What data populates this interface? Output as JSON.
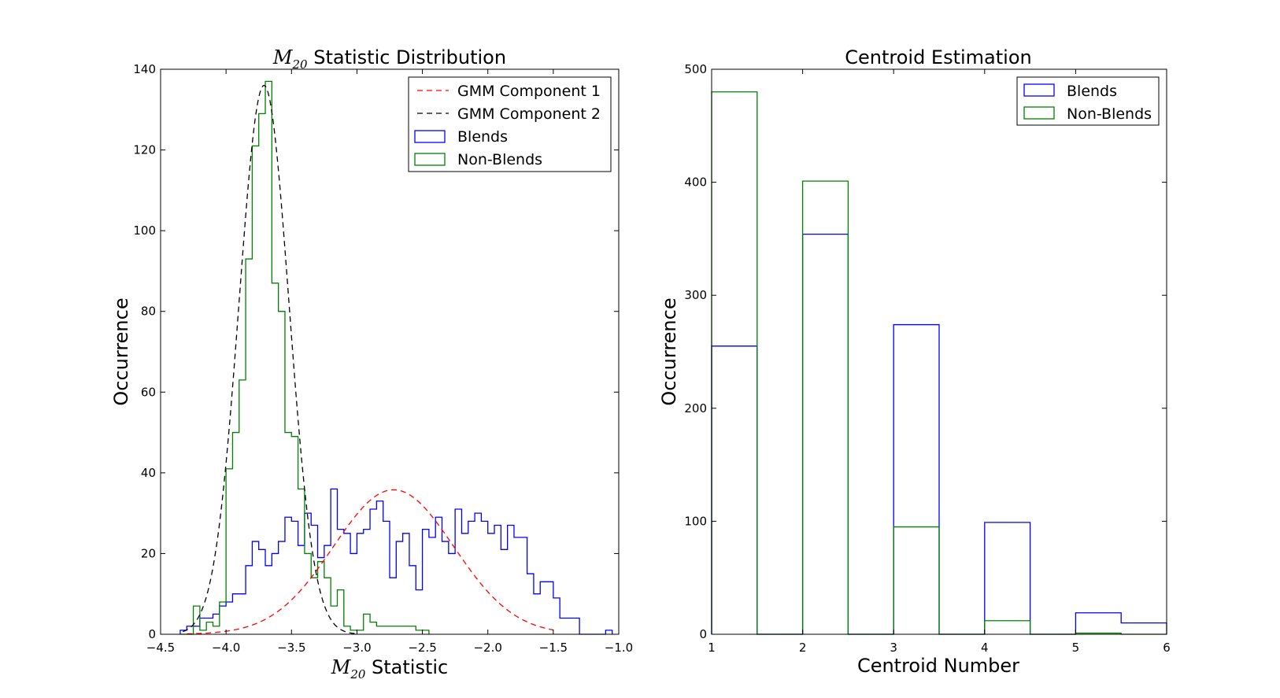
{
  "chart_data": [
    {
      "type": "histogram",
      "title": {
        "math_symbol": "M",
        "math_sub": "20",
        "text": " Statistic Distribution"
      },
      "xlabel": {
        "math_symbol": "M",
        "math_sub": "20",
        "text": " Statistic"
      },
      "ylabel": "Occurrence",
      "xlim": [
        -4.5,
        -1.0
      ],
      "ylim": [
        0,
        140
      ],
      "xticks": [
        -4.5,
        -4.0,
        -3.5,
        -3.0,
        -2.5,
        -2.0,
        -1.5,
        -1.0
      ],
      "xtick_labels": [
        "−4.5",
        "−4.0",
        "−3.5",
        "−3.0",
        "−2.5",
        "−2.0",
        "−1.5",
        "−1.0"
      ],
      "yticks": [
        0,
        20,
        40,
        60,
        80,
        100,
        120,
        140
      ],
      "ytick_labels": [
        "0",
        "20",
        "40",
        "60",
        "80",
        "100",
        "120",
        "140"
      ],
      "grid": false,
      "legend_position": "top-right",
      "bin_start": -4.35,
      "bin_width": 0.05,
      "series": [
        {
          "name": "Blends",
          "kind": "step",
          "color": "#0000ff",
          "values": [
            1,
            2,
            2,
            4,
            4,
            5,
            7,
            8,
            10,
            10,
            17,
            23,
            21,
            17,
            20,
            23,
            29,
            28,
            22,
            30,
            27,
            19,
            22,
            36,
            26,
            25,
            20,
            25,
            26,
            31,
            33,
            28,
            14,
            23,
            25,
            17,
            11,
            26,
            24,
            29,
            23,
            20,
            31,
            25,
            28,
            30,
            28,
            25,
            27,
            21,
            27,
            24,
            24,
            15,
            10,
            13,
            13,
            9,
            4,
            4,
            4,
            0,
            0,
            0,
            0,
            1
          ]
        },
        {
          "name": "Non-Blends",
          "kind": "step",
          "color": "#008000",
          "values": [
            0,
            0,
            7,
            1,
            3,
            2,
            8,
            41,
            50,
            63,
            93,
            121,
            129,
            137,
            87,
            80,
            50,
            49,
            36,
            20,
            14,
            18,
            14,
            7,
            11,
            2,
            1,
            1,
            5,
            3,
            2,
            2,
            2,
            2,
            2,
            2,
            1,
            1
          ]
        },
        {
          "name": "GMM Component 1",
          "kind": "dashed-line",
          "color": "#ff0000",
          "mean": -2.72,
          "sigma": 0.46,
          "peak": 35.8,
          "x_from": -4.3,
          "x_to": -1.5
        },
        {
          "name": "GMM Component 2",
          "kind": "dashed-line",
          "color": "#000000",
          "mean": -3.71,
          "sigma": 0.19,
          "peak": 136,
          "x_from": -4.33,
          "x_to": -3.0
        }
      ],
      "legend_order": [
        "GMM Component 1",
        "GMM Component 2",
        "Blends",
        "Non-Blends"
      ]
    },
    {
      "type": "histogram",
      "title": "Centroid Estimation",
      "xlabel": "Centroid Number",
      "ylabel": "Occurrence",
      "xlim": [
        1,
        6
      ],
      "ylim": [
        0,
        500
      ],
      "xticks": [
        1,
        2,
        3,
        4,
        5,
        6
      ],
      "xtick_labels": [
        "1",
        "2",
        "3",
        "4",
        "5",
        "6"
      ],
      "yticks": [
        0,
        100,
        200,
        300,
        400,
        500
      ],
      "ytick_labels": [
        "0",
        "100",
        "200",
        "300",
        "400",
        "500"
      ],
      "grid": false,
      "legend_position": "top-right",
      "bin_edges": [
        1,
        1.5,
        2,
        2.5,
        3,
        3.5,
        4,
        4.5,
        5,
        5.5,
        6
      ],
      "series": [
        {
          "name": "Blends",
          "kind": "step",
          "color": "#0000ff",
          "values": [
            255,
            0,
            354,
            0,
            274,
            0,
            99,
            0,
            19,
            10
          ]
        },
        {
          "name": "Non-Blends",
          "kind": "step",
          "color": "#008000",
          "values": [
            480,
            0,
            401,
            0,
            95,
            0,
            12,
            0,
            1,
            0
          ]
        }
      ],
      "legend_order": [
        "Blends",
        "Non-Blends"
      ]
    }
  ]
}
